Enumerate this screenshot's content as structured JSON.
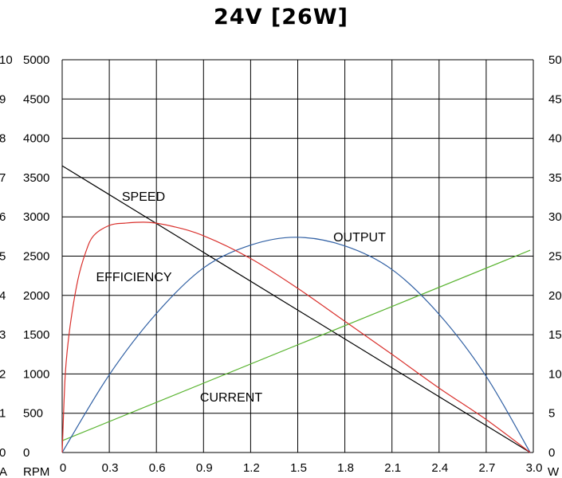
{
  "chart_data": {
    "type": "line",
    "title": "24V [26W]",
    "x": {
      "unit": "W",
      "range": [
        0,
        3.0
      ],
      "ticks": [
        "0",
        "0.3",
        "0.6",
        "0.9",
        "1.2",
        "1.5",
        "1.8",
        "2.1",
        "2.4",
        "2.7",
        "3.0"
      ]
    },
    "y_axes": {
      "current": {
        "unit": "A",
        "range": [
          0,
          10
        ],
        "ticks": [
          "0",
          "1",
          "2",
          "3",
          "4",
          "5",
          "6",
          "7",
          "8",
          "9",
          "10"
        ]
      },
      "speed": {
        "unit": "RPM",
        "range": [
          0,
          5000
        ],
        "ticks": [
          "0",
          "500",
          "1000",
          "1500",
          "2000",
          "2500",
          "3000",
          "3500",
          "4000",
          "4500",
          "5000"
        ]
      },
      "right": {
        "range": [
          0,
          50
        ],
        "ticks": [
          "0",
          "5",
          "10",
          "15",
          "20",
          "25",
          "30",
          "35",
          "40",
          "45",
          "50"
        ]
      }
    },
    "grid": true,
    "series": [
      {
        "name": "SPEED",
        "axis": "speed",
        "color": "#000000",
        "points": [
          [
            0,
            3650
          ],
          [
            2.98,
            0
          ]
        ]
      },
      {
        "name": "CURRENT",
        "axis": "current",
        "color": "#5ab431",
        "points": [
          [
            0,
            0.3
          ],
          [
            2.98,
            5.15
          ]
        ]
      },
      {
        "name": "OUTPUT",
        "axis": "right",
        "color": "#2f5fa3",
        "points": [
          [
            0,
            0
          ],
          [
            0.3,
            9.9
          ],
          [
            0.6,
            17.7
          ],
          [
            0.9,
            23.5
          ],
          [
            1.2,
            26.4
          ],
          [
            1.49,
            27.4
          ],
          [
            1.8,
            26.3
          ],
          [
            2.1,
            23.3
          ],
          [
            2.4,
            17.6
          ],
          [
            2.7,
            9.7
          ],
          [
            2.98,
            0
          ]
        ]
      },
      {
        "name": "EFFICIENCY",
        "axis": "right",
        "color": "#d9302c",
        "points": [
          [
            0,
            0
          ],
          [
            0.02,
            10
          ],
          [
            0.05,
            16
          ],
          [
            0.1,
            22
          ],
          [
            0.15,
            25.5
          ],
          [
            0.2,
            27.6
          ],
          [
            0.3,
            28.9
          ],
          [
            0.4,
            29.2
          ],
          [
            0.55,
            29.3
          ],
          [
            0.7,
            28.8
          ],
          [
            0.9,
            27.6
          ],
          [
            1.2,
            24.7
          ],
          [
            1.5,
            20.9
          ],
          [
            1.8,
            16.7
          ],
          [
            2.1,
            12.5
          ],
          [
            2.4,
            8.2
          ],
          [
            2.7,
            4.2
          ],
          [
            2.98,
            0
          ]
        ]
      }
    ]
  }
}
